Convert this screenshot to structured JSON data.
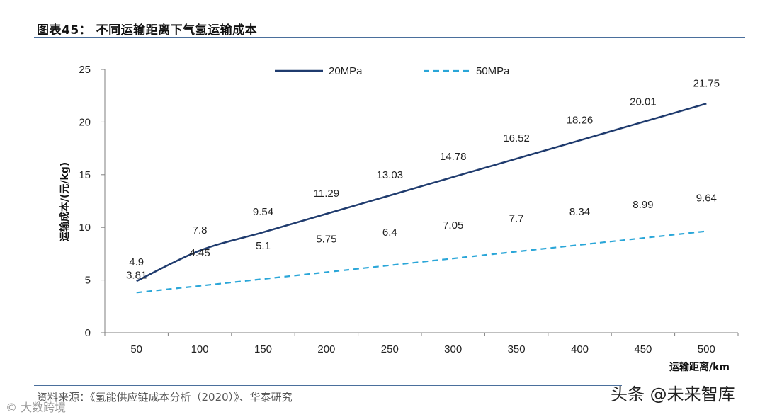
{
  "header": {
    "title": "图表45：  不同运输距离下气氢运输成本"
  },
  "footer": {
    "source": "资料来源：《氢能供应链成本分析（2020）》、华泰研究"
  },
  "watermarks": {
    "left": "© 大数跨境",
    "right": "头条 @未来智库"
  },
  "chart_data": {
    "type": "line",
    "title": "",
    "xlabel": "运输距离/km",
    "ylabel": "运输成本/(元/kg)",
    "categories": [
      "50",
      "100",
      "150",
      "200",
      "250",
      "300",
      "350",
      "400",
      "450",
      "500"
    ],
    "x": [
      50,
      100,
      150,
      200,
      250,
      300,
      350,
      400,
      450,
      500
    ],
    "ylim": [
      0,
      25
    ],
    "yticks": [
      "0",
      "5",
      "10",
      "15",
      "20",
      "25"
    ],
    "grid": false,
    "legend_position": "top-center",
    "series": [
      {
        "name": "20MPa",
        "style": "solid",
        "color": "#1f3b6e",
        "values": [
          4.9,
          7.8,
          9.54,
          11.29,
          13.03,
          14.78,
          16.52,
          18.26,
          20.01,
          21.75
        ],
        "labels": [
          "4.9",
          "7.8",
          "9.54",
          "11.29",
          "13.03",
          "14.78",
          "16.52",
          "18.26",
          "20.01",
          "21.75"
        ]
      },
      {
        "name": "50MPa",
        "style": "dashed",
        "color": "#2aa6d8",
        "values": [
          3.81,
          4.45,
          5.1,
          5.75,
          6.4,
          7.05,
          7.7,
          8.34,
          8.99,
          9.64
        ],
        "labels": [
          "3.81",
          "4.45",
          "5.1",
          "5.75",
          "6.4",
          "7.05",
          "7.7",
          "8.34",
          "8.99",
          "9.64"
        ]
      }
    ]
  }
}
